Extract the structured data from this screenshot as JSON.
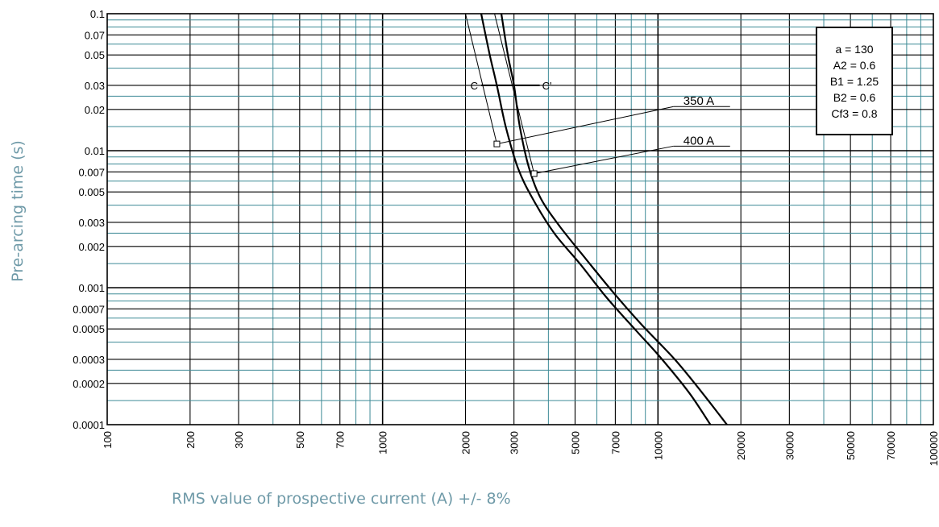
{
  "chart_data": {
    "type": "line",
    "title": "",
    "xlabel": "RMS value of prospective current (A) +/- 8%",
    "ylabel": "Pre-arcing time (s)",
    "x_scale": "log",
    "y_scale": "log",
    "xlim": [
      100,
      100000
    ],
    "ylim": [
      0.0001,
      0.1
    ],
    "grid": true,
    "x_tick_labels": [
      {
        "value": 100,
        "label": "100"
      },
      {
        "value": 200,
        "label": "200"
      },
      {
        "value": 300,
        "label": "300"
      },
      {
        "value": 500,
        "label": "500"
      },
      {
        "value": 700,
        "label": "700"
      },
      {
        "value": 1000,
        "label": "1000"
      },
      {
        "value": 2000,
        "label": "2000"
      },
      {
        "value": 3000,
        "label": "3000"
      },
      {
        "value": 5000,
        "label": "5000"
      },
      {
        "value": 7000,
        "label": "7000"
      },
      {
        "value": 10000,
        "label": "10000"
      },
      {
        "value": 20000,
        "label": "20000"
      },
      {
        "value": 30000,
        "label": "30000"
      },
      {
        "value": 50000,
        "label": "50000"
      },
      {
        "value": 70000,
        "label": "70000"
      },
      {
        "value": 100000,
        "label": "100000"
      }
    ],
    "y_tick_labels": [
      {
        "value": 0.1,
        "label": "0.1"
      },
      {
        "value": 0.07,
        "label": "0.07"
      },
      {
        "value": 0.05,
        "label": "0.05"
      },
      {
        "value": 0.03,
        "label": "0.03"
      },
      {
        "value": 0.02,
        "label": "0.02"
      },
      {
        "value": 0.01,
        "label": "0.01"
      },
      {
        "value": 0.007,
        "label": "0.007"
      },
      {
        "value": 0.005,
        "label": "0.005"
      },
      {
        "value": 0.003,
        "label": "0.003"
      },
      {
        "value": 0.002,
        "label": "0.002"
      },
      {
        "value": 0.001,
        "label": "0.001"
      },
      {
        "value": 0.0007,
        "label": "0.0007"
      },
      {
        "value": 0.0005,
        "label": "0.0005"
      },
      {
        "value": 0.0003,
        "label": "0.0003"
      },
      {
        "value": 0.0002,
        "label": "0.0002"
      },
      {
        "value": 0.0001,
        "label": "0.0001"
      }
    ],
    "series": [
      {
        "name": "350 A",
        "x": [
          2280,
          2450,
          2600,
          2800,
          3100,
          3500,
          4200,
          5200,
          6500,
          8300,
          10200,
          13000,
          15500
        ],
        "y": [
          0.1,
          0.05,
          0.03,
          0.015,
          0.0075,
          0.0045,
          0.0025,
          0.0015,
          0.00085,
          0.00049,
          0.00031,
          0.00017,
          0.0001
        ]
      },
      {
        "name": "400 A",
        "x": [
          2700,
          2850,
          3000,
          3150,
          3400,
          3750,
          4400,
          5500,
          6800,
          8700,
          11500,
          14500,
          17800
        ],
        "y": [
          0.1,
          0.05,
          0.03,
          0.015,
          0.0075,
          0.0045,
          0.0028,
          0.0016,
          0.00095,
          0.00054,
          0.0003,
          0.00017,
          0.0001
        ]
      }
    ],
    "thin_lines": [
      {
        "x": [
          2000,
          2600
        ],
        "y": [
          0.1,
          0.0112
        ]
      },
      {
        "x": [
          2550,
          3550
        ],
        "y": [
          0.1,
          0.0068
        ]
      }
    ],
    "cc_line": {
      "y": 0.03,
      "x_start": 2280,
      "x_end": 3720,
      "left_label": "C",
      "right_label": "C'"
    },
    "callouts": [
      {
        "label": "350 A",
        "marker": {
          "x": 2600,
          "y": 0.0112
        },
        "label_point": {
          "x": 11400,
          "y": 0.021
        }
      },
      {
        "label": "400 A",
        "marker": {
          "x": 3550,
          "y": 0.0068
        },
        "label_point": {
          "x": 11400,
          "y": 0.0108
        }
      }
    ],
    "parameters": [
      "a = 130",
      "A2 = 0.6",
      "B1 = 1.25",
      "B2 = 0.6",
      "Cf3 = 0.8"
    ],
    "colors": {
      "major_grid": "#000000",
      "minor_grid": "#3d8a96",
      "curves": "#000000",
      "axis_titles": "#6f9aa8"
    }
  }
}
